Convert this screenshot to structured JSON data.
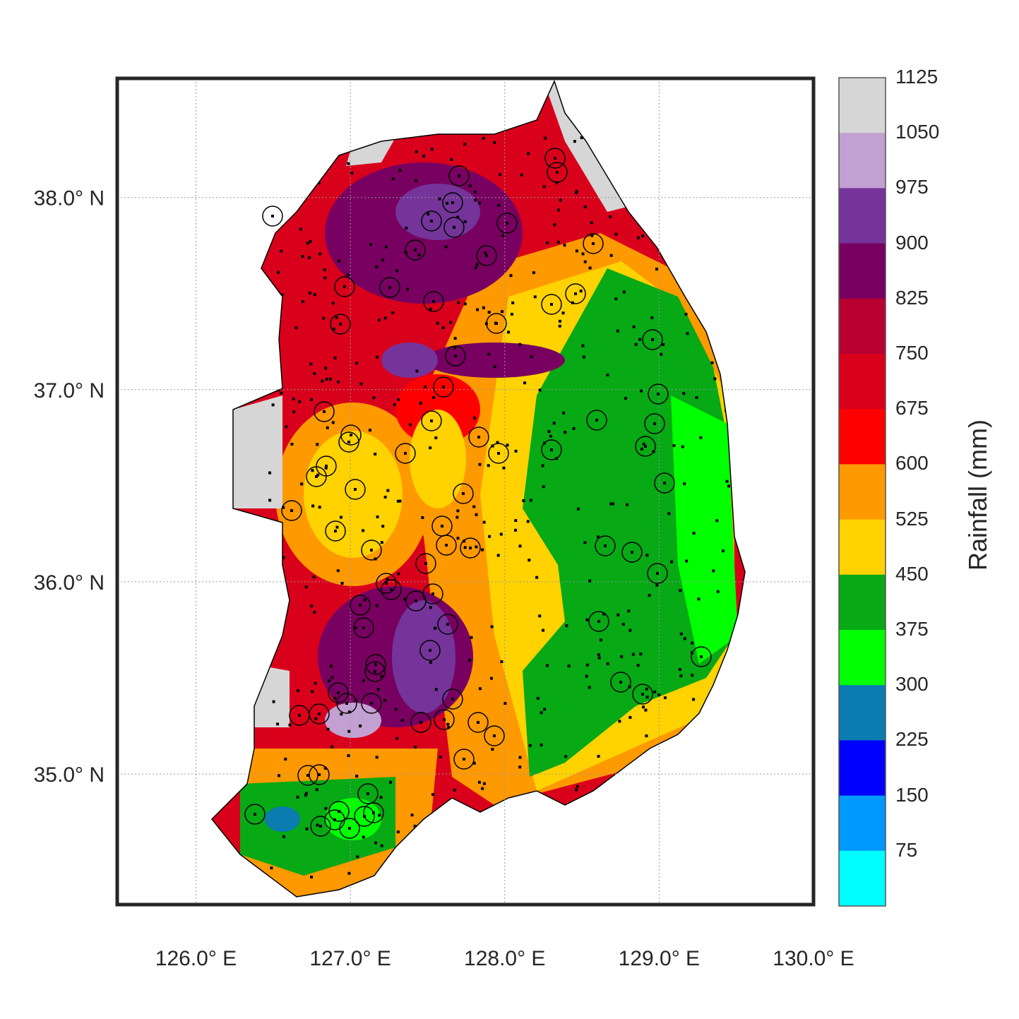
{
  "map": {
    "x_ticks": [
      "126.0° E",
      "127.0° E",
      "128.0° E",
      "129.0° E",
      "130.0° E"
    ],
    "y_ticks": [
      "38.0° N",
      "37.0° N",
      "36.0° N",
      "35.0° N"
    ],
    "x_tick_values": [
      126,
      127,
      128,
      129,
      130
    ],
    "y_tick_values": [
      38,
      37,
      36,
      35
    ],
    "lon_range": [
      125.49,
      130.0
    ],
    "lat_range": [
      34.32,
      38.62
    ],
    "grid": "dotted"
  },
  "colorbar": {
    "title": "Rainfall (mm)",
    "labels": [
      "1125",
      "1050",
      "975",
      "900",
      "825",
      "750",
      "675",
      "600",
      "525",
      "450",
      "375",
      "300",
      "225",
      "150",
      "75"
    ],
    "colors": [
      "#d6d6d6",
      "#c2a0d2",
      "#74349a",
      "#780060",
      "#b90030",
      "#d9001c",
      "#ff0000",
      "#ff9900",
      "#ffd200",
      "#07a915",
      "#00ff00",
      "#0a7caf",
      "#0000ff",
      "#0099ff",
      "#00ffff"
    ]
  }
}
